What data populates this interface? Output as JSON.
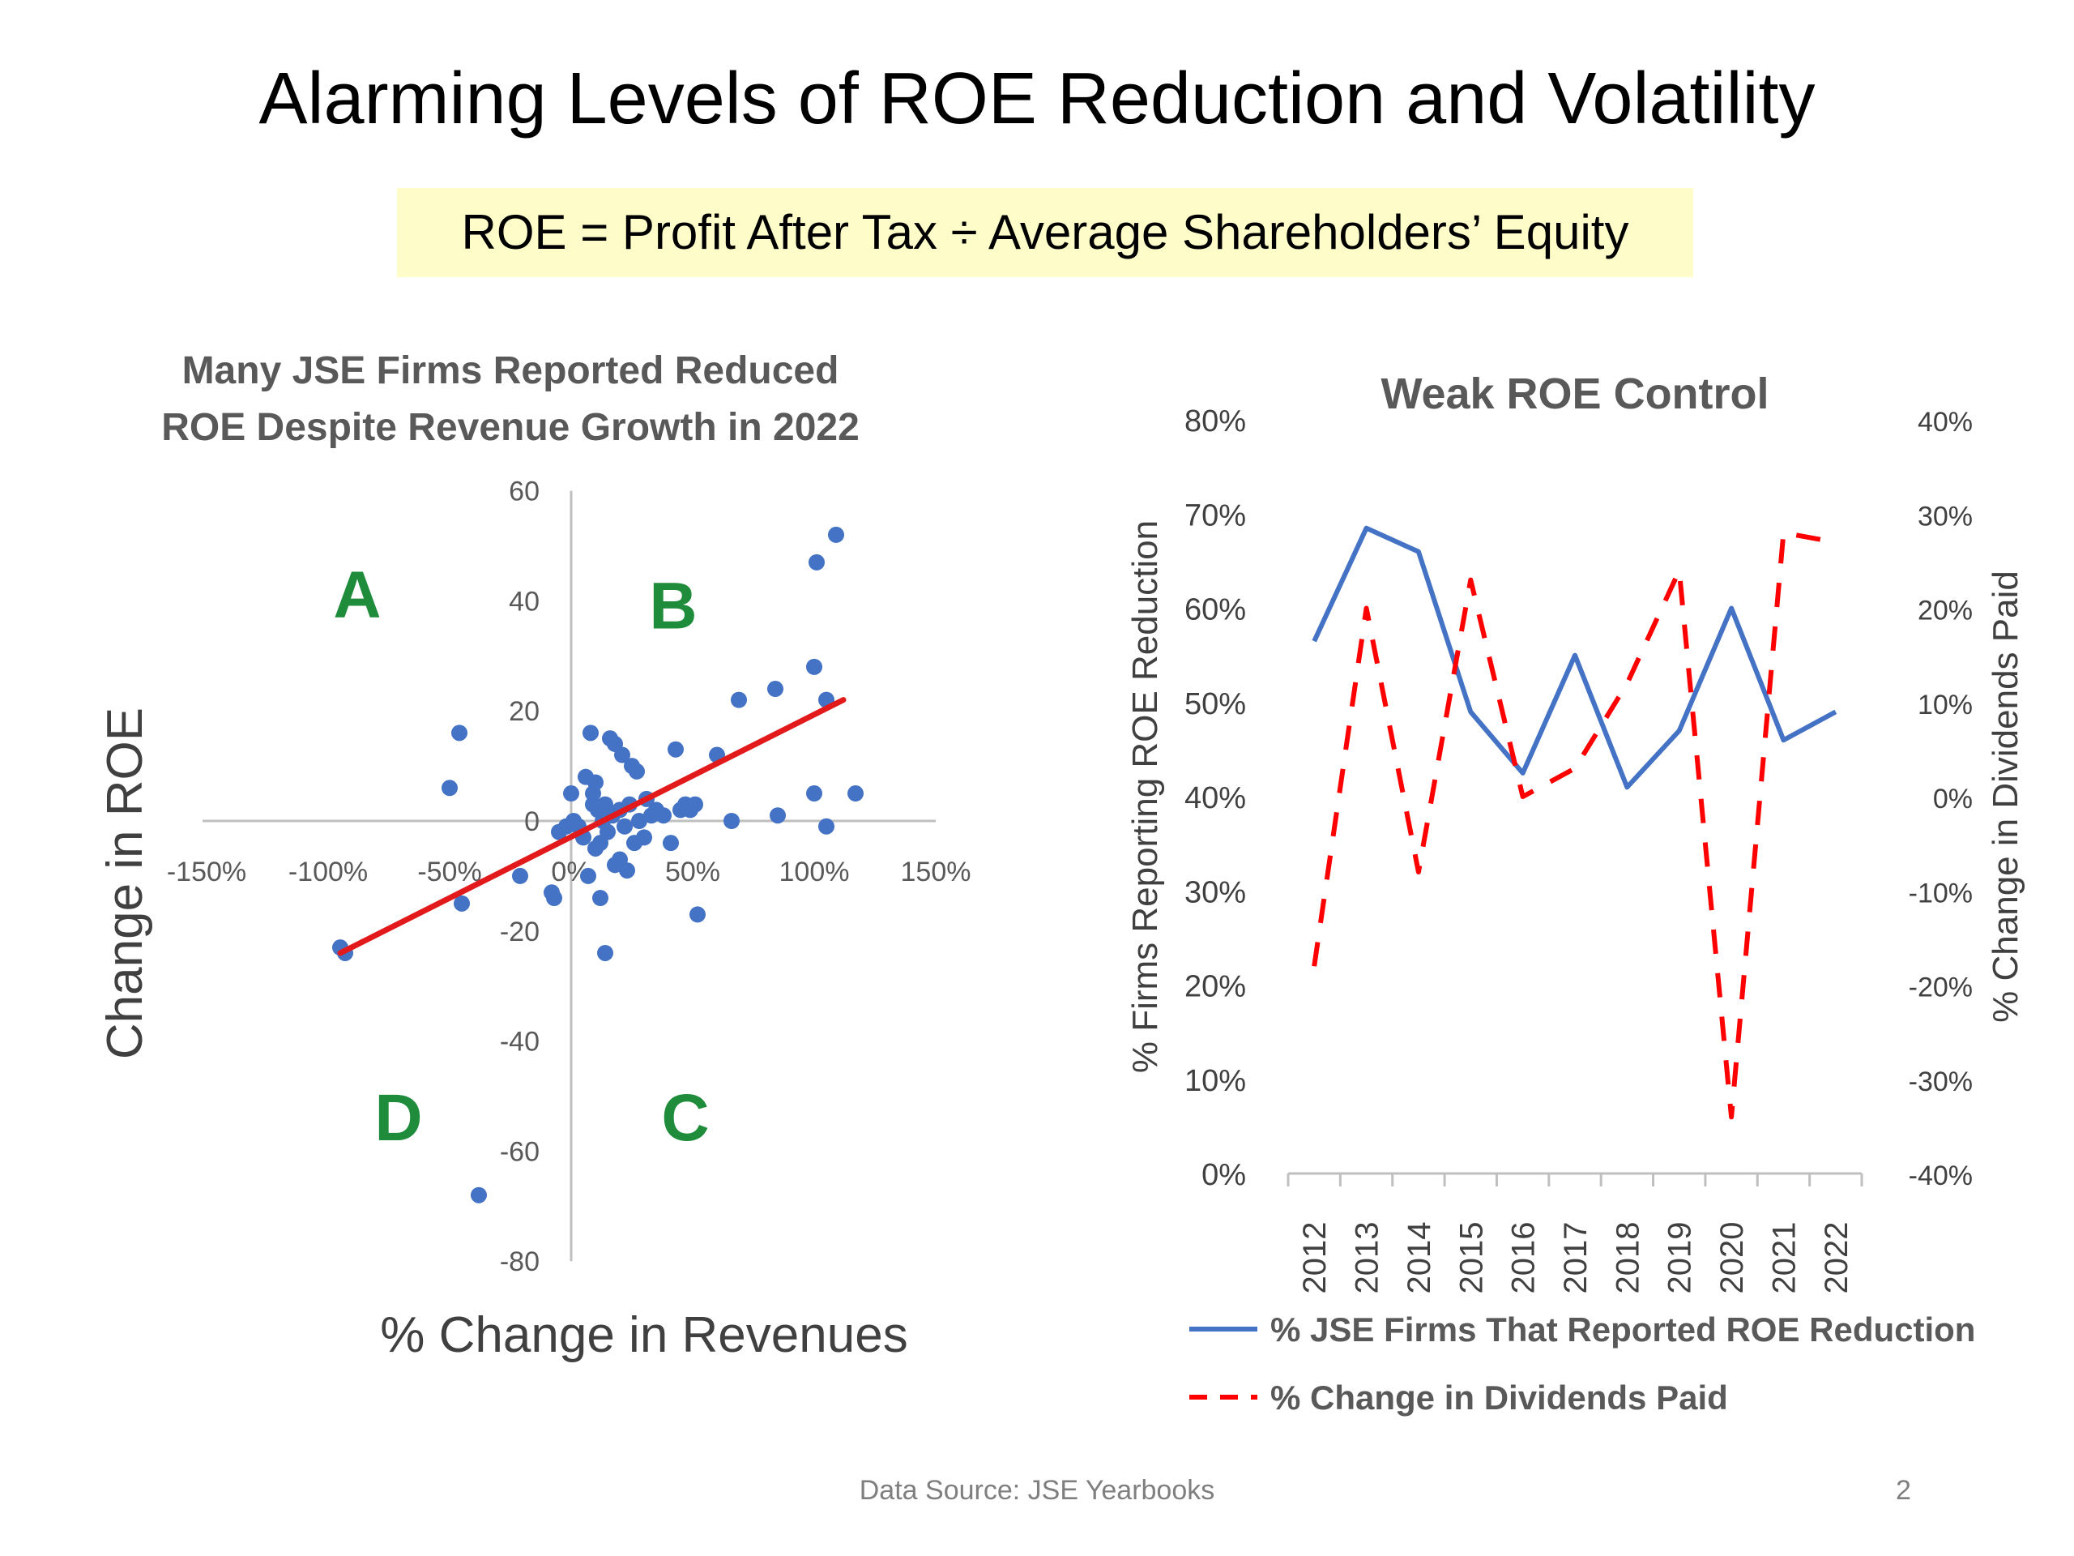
{
  "slide": {
    "title": "Alarming Levels of ROE Reduction and Volatility",
    "formula": "ROE = Profit After Tax ÷ Average Shareholders’ Equity",
    "source": "Data Source: JSE Yearbooks",
    "page_number": "2"
  },
  "chart_data": [
    {
      "type": "scatter",
      "title": "Many JSE Firms Reported Reduced ROE Despite Revenue Growth in 2022",
      "title_lines": [
        "Many JSE Firms Reported Reduced",
        "ROE Despite Revenue Growth in 2022"
      ],
      "xlabel": "% Change in Revenues",
      "ylabel": "Change in ROE",
      "xlim": [
        -1.5,
        1.5
      ],
      "ylim": [
        -80,
        60
      ],
      "x_ticks": [
        -1.5,
        -1.0,
        -0.5,
        0,
        0.5,
        1.0,
        1.5
      ],
      "x_tick_labels": [
        "-150%",
        "-100%",
        "-50%",
        "0%",
        "50%",
        "100%",
        "150%"
      ],
      "y_ticks": [
        60,
        40,
        20,
        0,
        -20,
        -40,
        -60,
        -80
      ],
      "y_tick_labels": [
        "60",
        "40",
        "20",
        "0",
        "-20",
        "-40",
        "-60",
        "-80"
      ],
      "grid": false,
      "colors": {
        "points": "#4472c4",
        "trendline": "#e31a1c",
        "quadrant_labels": "#1e8c3a",
        "axis_text": "#595959"
      },
      "quadrant_labels": [
        {
          "label": "A",
          "x": -0.88,
          "y": 37
        },
        {
          "label": "B",
          "x": 0.42,
          "y": 35
        },
        {
          "label": "C",
          "x": 0.47,
          "y": -58
        },
        {
          "label": "D",
          "x": -0.71,
          "y": -58
        }
      ],
      "trendline": {
        "x": [
          -0.95,
          1.12
        ],
        "y": [
          -24,
          22
        ]
      },
      "points": [
        {
          "x": -0.95,
          "y": -23
        },
        {
          "x": -0.93,
          "y": -24
        },
        {
          "x": -0.46,
          "y": 16
        },
        {
          "x": -0.5,
          "y": 6
        },
        {
          "x": -0.45,
          "y": -15
        },
        {
          "x": -0.38,
          "y": -68
        },
        {
          "x": -0.21,
          "y": -10
        },
        {
          "x": -0.08,
          "y": -13
        },
        {
          "x": -0.07,
          "y": -14
        },
        {
          "x": -0.05,
          "y": -2
        },
        {
          "x": -0.02,
          "y": -1
        },
        {
          "x": 0.0,
          "y": 5
        },
        {
          "x": 0.01,
          "y": 0
        },
        {
          "x": 0.03,
          "y": -1
        },
        {
          "x": 0.05,
          "y": -3
        },
        {
          "x": 0.06,
          "y": 8
        },
        {
          "x": 0.07,
          "y": -10
        },
        {
          "x": 0.08,
          "y": 16
        },
        {
          "x": 0.09,
          "y": 5
        },
        {
          "x": 0.1,
          "y": 7
        },
        {
          "x": 0.1,
          "y": -5
        },
        {
          "x": 0.11,
          "y": 2
        },
        {
          "x": 0.12,
          "y": -4
        },
        {
          "x": 0.13,
          "y": 0
        },
        {
          "x": 0.14,
          "y": 3
        },
        {
          "x": 0.15,
          "y": -2
        },
        {
          "x": 0.16,
          "y": 15
        },
        {
          "x": 0.17,
          "y": 1
        },
        {
          "x": 0.18,
          "y": 14
        },
        {
          "x": 0.18,
          "y": -8
        },
        {
          "x": 0.2,
          "y": 2
        },
        {
          "x": 0.21,
          "y": 12
        },
        {
          "x": 0.22,
          "y": -1
        },
        {
          "x": 0.23,
          "y": -9
        },
        {
          "x": 0.24,
          "y": 3
        },
        {
          "x": 0.25,
          "y": 10
        },
        {
          "x": 0.26,
          "y": -4
        },
        {
          "x": 0.27,
          "y": 9
        },
        {
          "x": 0.28,
          "y": 0
        },
        {
          "x": 0.3,
          "y": -3
        },
        {
          "x": 0.31,
          "y": 4
        },
        {
          "x": 0.33,
          "y": 1
        },
        {
          "x": 0.35,
          "y": 2
        },
        {
          "x": 0.38,
          "y": 1
        },
        {
          "x": 0.41,
          "y": -4
        },
        {
          "x": 0.43,
          "y": 13
        },
        {
          "x": 0.45,
          "y": 2
        },
        {
          "x": 0.47,
          "y": 3
        },
        {
          "x": 0.49,
          "y": 2
        },
        {
          "x": 0.51,
          "y": 3
        },
        {
          "x": 0.52,
          "y": -17
        },
        {
          "x": 0.6,
          "y": 12
        },
        {
          "x": 0.66,
          "y": 0
        },
        {
          "x": 0.69,
          "y": 22
        },
        {
          "x": 0.84,
          "y": 24
        },
        {
          "x": 0.85,
          "y": 1
        },
        {
          "x": 1.0,
          "y": 28
        },
        {
          "x": 1.0,
          "y": 5
        },
        {
          "x": 1.01,
          "y": 47
        },
        {
          "x": 1.05,
          "y": -1
        },
        {
          "x": 1.05,
          "y": 22
        },
        {
          "x": 1.09,
          "y": 52
        },
        {
          "x": 1.17,
          "y": 5
        },
        {
          "x": 0.12,
          "y": -14
        },
        {
          "x": 0.14,
          "y": -24
        },
        {
          "x": 0.2,
          "y": -7
        },
        {
          "x": 0.09,
          "y": 3
        }
      ]
    },
    {
      "type": "line",
      "title": "Weak ROE Control",
      "categories": [
        "2012",
        "2013",
        "2014",
        "2015",
        "2016",
        "2017",
        "2018",
        "2019",
        "2020",
        "2021",
        "2022"
      ],
      "ylabel": "% Firms Reporting  ROE Reduction",
      "y2label": "% Change in Dividends Paid",
      "ylim": [
        0,
        0.8
      ],
      "y2lim": [
        -0.4,
        0.4
      ],
      "y_tick_labels": [
        "80%",
        "70%",
        "60%",
        "50%",
        "40%",
        "30%",
        "20%",
        "10%",
        "0%"
      ],
      "y2_tick_labels": [
        "40%",
        "30%",
        "20%",
        "10%",
        "0%",
        "-10%",
        "-20%",
        "-30%",
        "-40%"
      ],
      "legend": "bottom",
      "series": [
        {
          "name": "% JSE Firms That Reported ROE Reduction",
          "axis": "left",
          "style": "solid",
          "color": "#4472c4",
          "values": [
            0.565,
            0.685,
            0.66,
            0.49,
            0.425,
            0.55,
            0.41,
            0.47,
            0.6,
            0.46,
            0.49
          ]
        },
        {
          "name": "% Change in Dividends Paid",
          "axis": "right",
          "style": "dashed",
          "color": "#ff0000",
          "values": [
            -0.18,
            0.2,
            -0.08,
            0.23,
            0.0,
            0.03,
            0.12,
            0.24,
            -0.34,
            0.28,
            0.27
          ]
        }
      ]
    }
  ]
}
